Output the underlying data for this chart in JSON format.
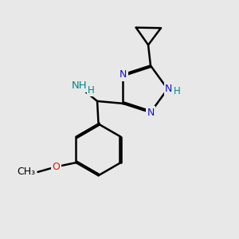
{
  "bg_color": "#e8e8e8",
  "bond_color": "#000000",
  "n_color": "#1010cc",
  "o_color": "#cc2200",
  "nh_color": "#008888",
  "lw": 1.8,
  "dbo": 0.055,
  "figsize": [
    3.0,
    3.0
  ],
  "dpi": 100,
  "xlim": [
    0,
    10
  ],
  "ylim": [
    0,
    10
  ]
}
